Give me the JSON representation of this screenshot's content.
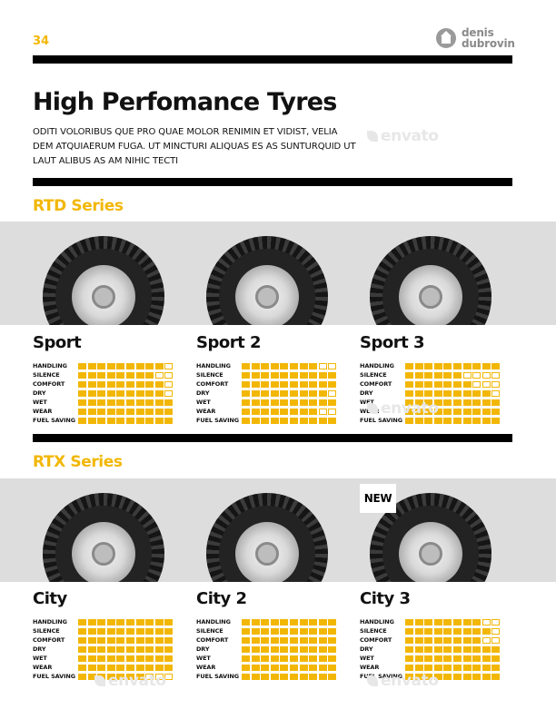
{
  "page": {
    "number": "34"
  },
  "brand": {
    "line1": "denis",
    "line2": "dubrovin",
    "icon": "home-icon"
  },
  "header": {
    "title": "High Perfomance Tyres",
    "intro_lines": [
      "ODITI VOLORIBUS QUE PRO QUAE MOLOR RENIMIN ET VIDIST, VELIA",
      "DEM ATQUIAERUM FUGA. UT MINCTURI ALIQUAS ES AS SUNTURQUID UT",
      "LAUT ALIBUS AS AM NIHIC TECTI"
    ]
  },
  "watermark": {
    "text": "envato"
  },
  "colors": {
    "accent": "#f2b705",
    "band": "#dcdddc",
    "rule": "#000000"
  },
  "rating_scale": 10,
  "series": [
    {
      "title": "RTD Series",
      "products": [
        {
          "name": "Sport",
          "ratings": [
            {
              "label": "HANDLING",
              "value": 9
            },
            {
              "label": "SILENCE",
              "value": 8
            },
            {
              "label": "COMFORT",
              "value": 9
            },
            {
              "label": "DRY",
              "value": 9
            },
            {
              "label": "WET",
              "value": 10
            },
            {
              "label": "WEAR",
              "value": 10
            },
            {
              "label": "FUEL SAVING",
              "value": 10
            }
          ]
        },
        {
          "name": "Sport 2",
          "ratings": [
            {
              "label": "HANDLING",
              "value": 8
            },
            {
              "label": "SILENCE",
              "value": 10
            },
            {
              "label": "COMFORT",
              "value": 10
            },
            {
              "label": "DRY",
              "value": 9
            },
            {
              "label": "WET",
              "value": 10
            },
            {
              "label": "WEAR",
              "value": 8
            },
            {
              "label": "FUEL SAVING",
              "value": 10
            }
          ]
        },
        {
          "name": "Sport 3",
          "ratings": [
            {
              "label": "HANDLING",
              "value": 10
            },
            {
              "label": "SILENCE",
              "value": 6
            },
            {
              "label": "COMFORT",
              "value": 7
            },
            {
              "label": "DRY",
              "value": 9
            },
            {
              "label": "WET",
              "value": 10
            },
            {
              "label": "WEAR",
              "value": 10
            },
            {
              "label": "FUEL SAVING",
              "value": 10
            }
          ]
        }
      ]
    },
    {
      "title": "RTX Series",
      "products": [
        {
          "name": "City",
          "badge": "",
          "ratings": [
            {
              "label": "HANDLING",
              "value": 10
            },
            {
              "label": "SILENCE",
              "value": 10
            },
            {
              "label": "COMFORT",
              "value": 10
            },
            {
              "label": "DRY",
              "value": 10
            },
            {
              "label": "WET",
              "value": 10
            },
            {
              "label": "WEAR",
              "value": 10
            },
            {
              "label": "FUEL SAVING",
              "value": 7
            }
          ]
        },
        {
          "name": "City 2",
          "badge": "",
          "ratings": [
            {
              "label": "HANDLING",
              "value": 10
            },
            {
              "label": "SILENCE",
              "value": 10
            },
            {
              "label": "COMFORT",
              "value": 10
            },
            {
              "label": "DRY",
              "value": 10
            },
            {
              "label": "WET",
              "value": 10
            },
            {
              "label": "WEAR",
              "value": 10
            },
            {
              "label": "FUEL SAVING",
              "value": 10
            }
          ]
        },
        {
          "name": "City 3",
          "badge": "NEW",
          "ratings": [
            {
              "label": "HANDLING",
              "value": 8
            },
            {
              "label": "SILENCE",
              "value": 9
            },
            {
              "label": "COMFORT",
              "value": 8
            },
            {
              "label": "DRY",
              "value": 10
            },
            {
              "label": "WET",
              "value": 10
            },
            {
              "label": "WEAR",
              "value": 10
            },
            {
              "label": "FUEL SAVING",
              "value": 10
            }
          ]
        }
      ]
    }
  ]
}
